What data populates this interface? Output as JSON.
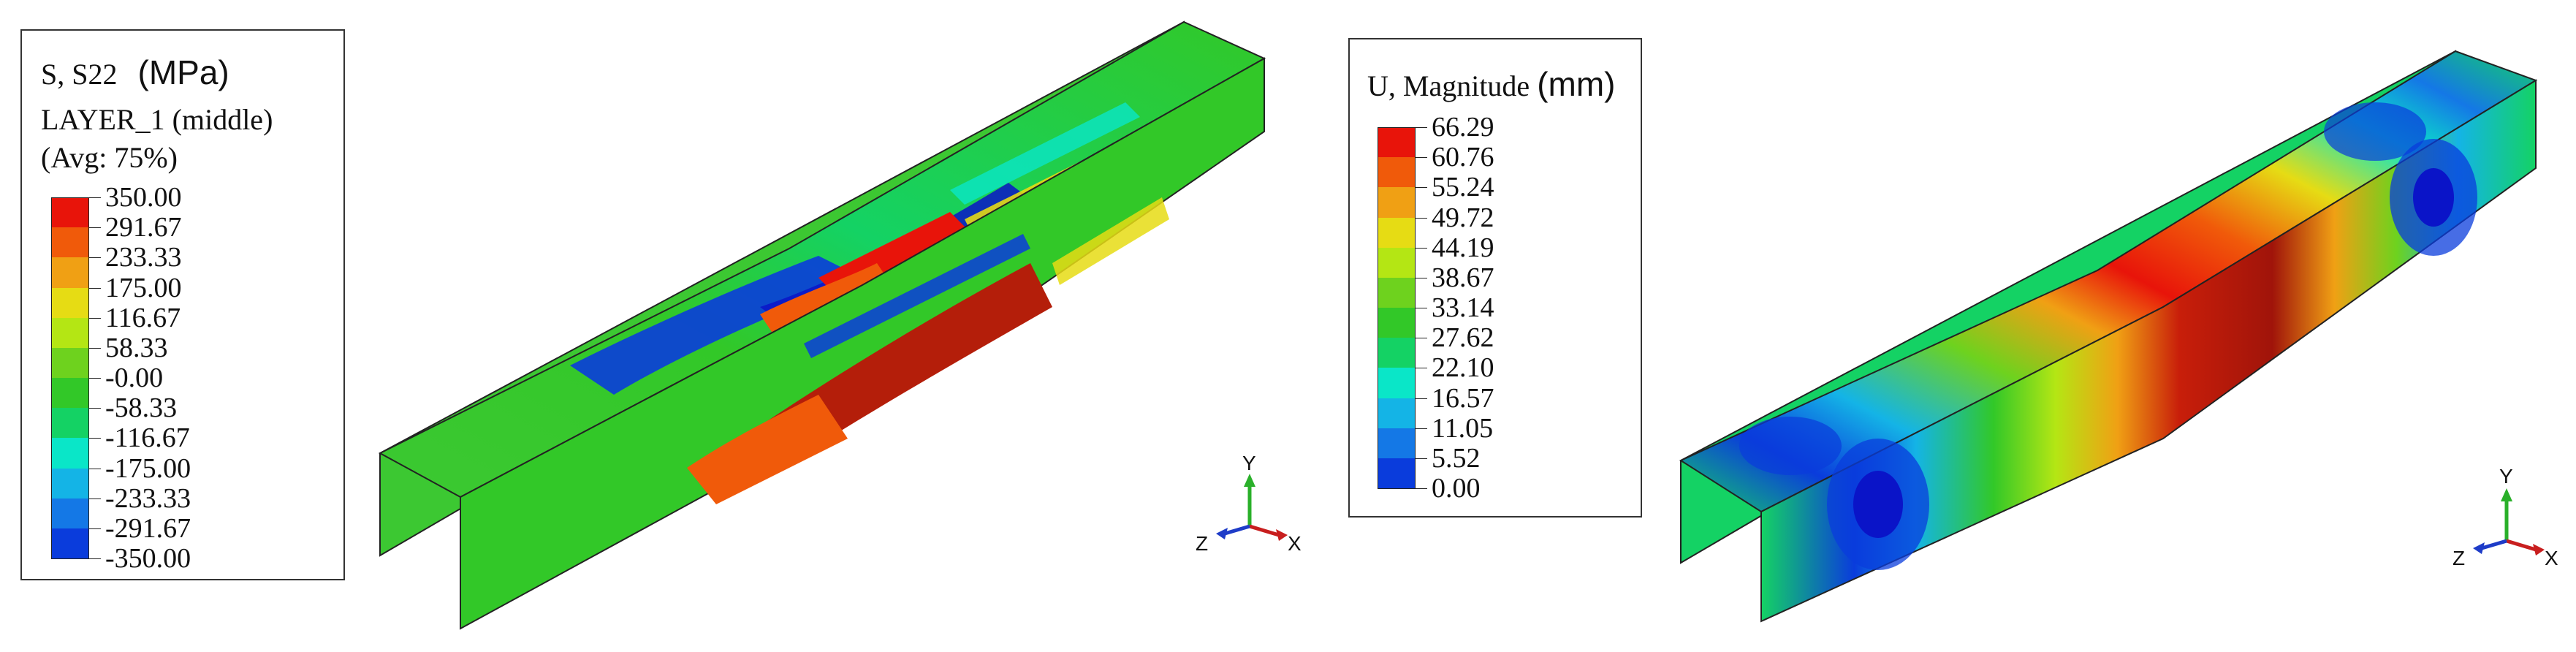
{
  "left_panel": {
    "legend": {
      "line1": "S, S22",
      "unit": "(MPa)",
      "line2": "LAYER_1 (middle)",
      "line3": "(Avg: 75%)",
      "values": [
        "350.00",
        "291.67",
        "233.33",
        "175.00",
        "116.67",
        "58.33",
        "-0.00",
        "-58.33",
        "-116.67",
        "-175.00",
        "-233.33",
        "-291.67",
        "-350.00"
      ],
      "colors": [
        "#e8140a",
        "#f05a0a",
        "#f0a014",
        "#e6dc14",
        "#b4e614",
        "#6ed21e",
        "#32c828",
        "#14d264",
        "#0ae6c8",
        "#14b4e6",
        "#1478e6",
        "#0a3cdc",
        "#0a14c8"
      ]
    },
    "triad": {
      "y": "Y",
      "z": "Z",
      "x": "X"
    }
  },
  "right_panel": {
    "legend": {
      "line1": "U, Magnitude",
      "unit": "(mm)",
      "values": [
        "66.29",
        "60.76",
        "55.24",
        "49.72",
        "44.19",
        "38.67",
        "33.14",
        "27.62",
        "22.10",
        "16.57",
        "11.05",
        "5.52",
        "0.00"
      ],
      "colors": [
        "#e8140a",
        "#f05a0a",
        "#f0a014",
        "#e6dc14",
        "#b4e614",
        "#6ed21e",
        "#32c828",
        "#14d264",
        "#0ae6c8",
        "#14b4e6",
        "#1478e6",
        "#0a3cdc",
        "#0a14c8"
      ]
    },
    "triad": {
      "y": "Y",
      "z": "Z",
      "x": "X"
    }
  }
}
